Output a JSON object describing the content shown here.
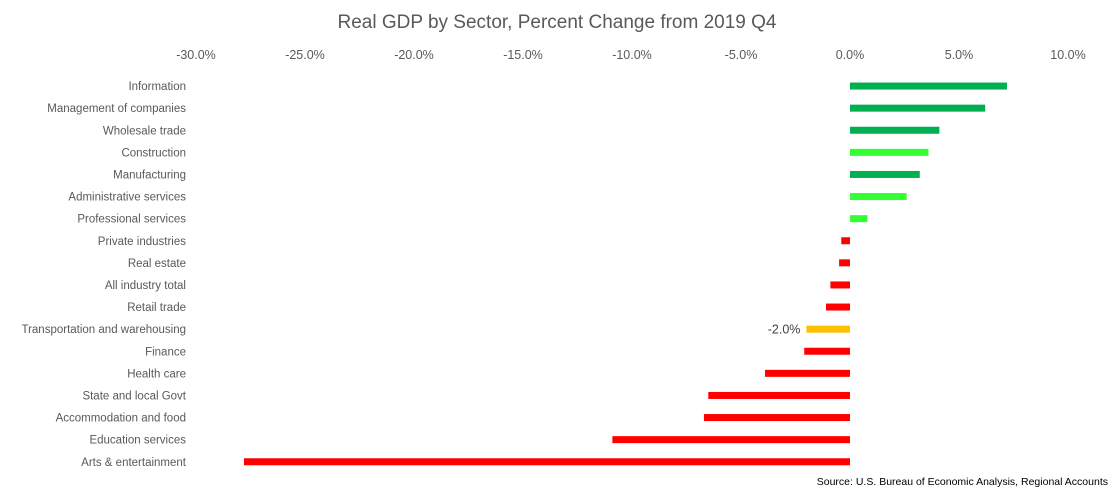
{
  "chart_data": {
    "type": "bar",
    "orientation": "horizontal",
    "title": "Real GDP by Sector, Percent Change from 2019 Q4",
    "source": "Source:  U.S. Bureau of Economic Analysis, Regional Accounts",
    "x_axis_position": "top",
    "xlim": [
      -30,
      10
    ],
    "x_ticks": [
      -30,
      -25,
      -20,
      -15,
      -10,
      -5,
      0,
      5,
      10
    ],
    "x_tick_labels": [
      "-30.0%",
      "-25.0%",
      "-20.0%",
      "-15.0%",
      "-10.0%",
      "-5.0%",
      "0.0%",
      "5.0%",
      "10.0%"
    ],
    "grid": false,
    "legend": "none",
    "categories": [
      "Information",
      "Management of companies",
      "Wholesale trade",
      "Construction",
      "Manufacturing",
      "Administrative  services",
      "Professional services",
      "Private industries",
      "Real estate",
      "All industry total",
      "Retail trade",
      "Transportation and warehousing",
      "Finance",
      "Health care",
      "State and local Govt",
      "Accommodation and food",
      "Education services",
      "Arts & entertainment"
    ],
    "values": [
      7.2,
      6.2,
      4.1,
      3.6,
      3.2,
      2.6,
      0.8,
      -0.4,
      -0.5,
      -0.9,
      -1.1,
      -2.0,
      -2.1,
      -3.9,
      -6.5,
      -6.7,
      -10.9,
      -27.8
    ],
    "bar_colors": [
      "#00B050",
      "#00B050",
      "#00B050",
      "#33FF33",
      "#00B050",
      "#33FF33",
      "#33FF33",
      "#FF0000",
      "#FF0000",
      "#FF0000",
      "#FF0000",
      "#FFC000",
      "#FF0000",
      "#FF0000",
      "#FF0000",
      "#FF0000",
      "#FF0000",
      "#FF0000"
    ],
    "data_labels": [
      {
        "category": "Transportation and warehousing",
        "text": "-2.0%"
      }
    ]
  }
}
